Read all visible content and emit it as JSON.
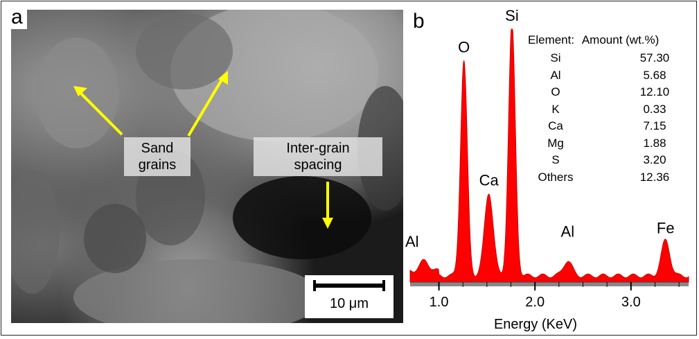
{
  "panel_a": {
    "letter": "a",
    "label_sand": [
      "Sand",
      "grains"
    ],
    "label_inter": [
      "Inter-grain",
      "spacing"
    ],
    "scale_label": "10 μm",
    "arrow_color": "#ffff00"
  },
  "panel_b": {
    "letter": "b",
    "table": {
      "header_element": "Element:",
      "header_amount": "Amount (wt.%)",
      "rows": [
        {
          "element": "Si",
          "amount": "57.30"
        },
        {
          "element": "Al",
          "amount": "5.68"
        },
        {
          "element": "O",
          "amount": "12.10"
        },
        {
          "element": "K",
          "amount": "0.33"
        },
        {
          "element": "Ca",
          "amount": "7.15"
        },
        {
          "element": "Mg",
          "amount": "1.88"
        },
        {
          "element": "S",
          "amount": "3.20"
        },
        {
          "element": "Others",
          "amount": "12.36"
        }
      ]
    }
  },
  "chart_data": {
    "type": "area",
    "title": "",
    "xlabel": "Energy (KeV)",
    "ylabel": "",
    "xlim": [
      0.7,
      3.6
    ],
    "x_ticks": [
      "1.0",
      "2.0",
      "3.0"
    ],
    "x_tick_values": [
      1.0,
      2.0,
      3.0
    ],
    "ylim": [
      0,
      100
    ],
    "fill_color": "#ff0000",
    "peaks": [
      {
        "label": "Al",
        "energy": 0.85,
        "intensity": 4
      },
      {
        "label": "O",
        "energy": 1.26,
        "intensity": 85
      },
      {
        "label": "Ca",
        "energy": 1.52,
        "intensity": 33
      },
      {
        "label": "Si",
        "energy": 1.76,
        "intensity": 100
      },
      {
        "label": "Al",
        "energy": 2.34,
        "intensity": 6
      },
      {
        "label": "Fe",
        "energy": 3.36,
        "intensity": 14
      }
    ]
  }
}
